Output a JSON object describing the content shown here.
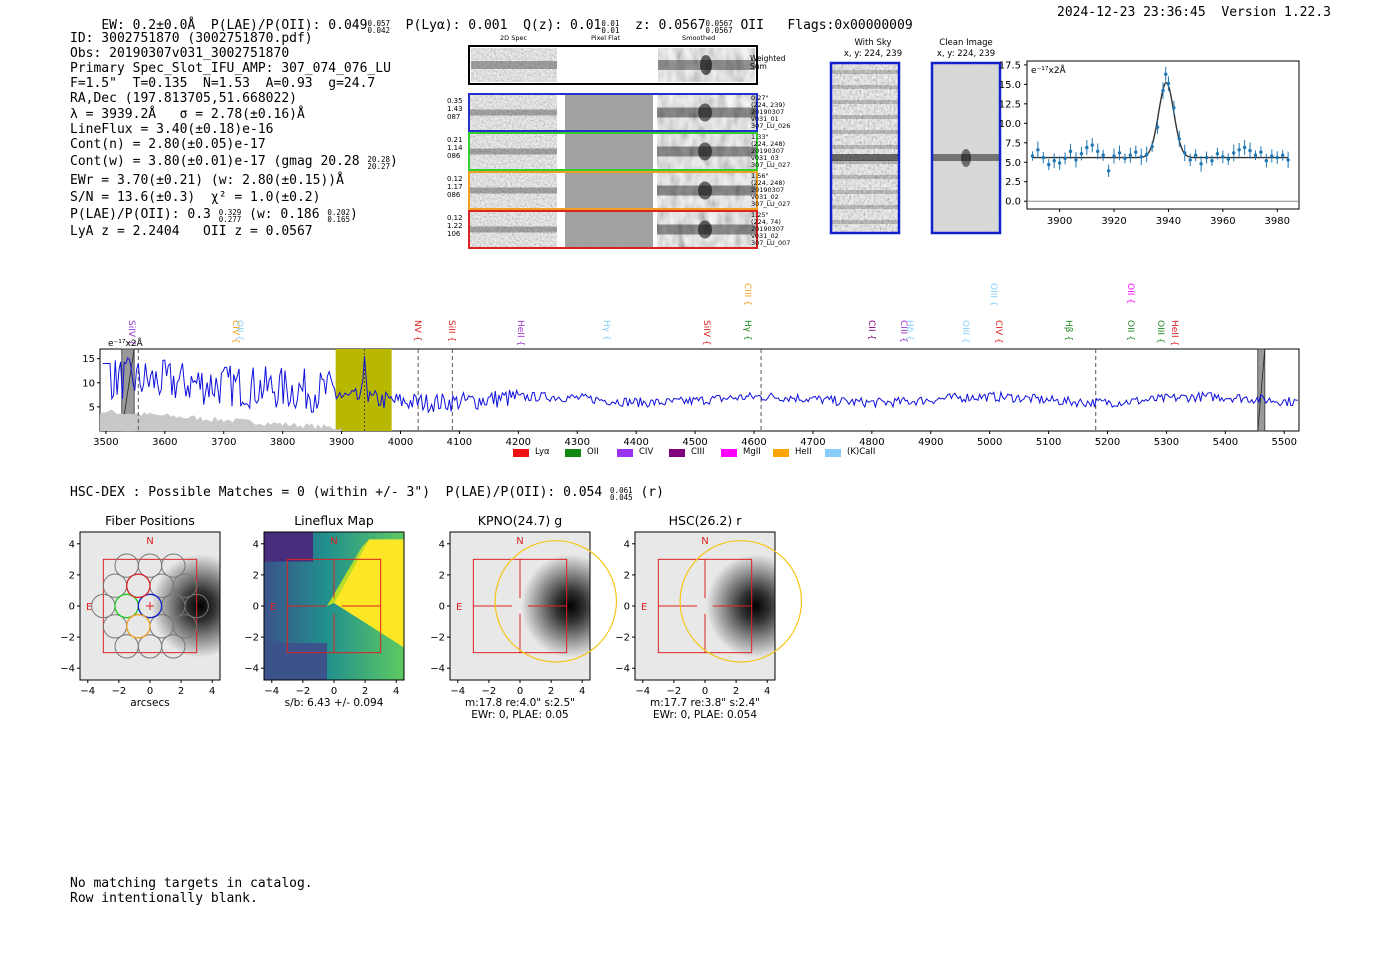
{
  "header": {
    "ew": "EW: 0.2±0.0Å",
    "plae_label": "P(LAE)/P(OII): 0.049",
    "plae_hi": "0.057",
    "plae_lo": "0.042",
    "plya": "P(Lyα): 0.001",
    "qz_label": "Q(z): 0.01",
    "qz_hi": "0.01",
    "qz_lo": "0.01",
    "z_label": "z: 0.0567",
    "z_hi": "0.0567",
    "z_lo": "0.0567",
    "z_line": "OII",
    "flags": "Flags:0x00000009",
    "timestamp": "2024-12-23 23:36:45",
    "version": "Version 1.22.3"
  },
  "info": {
    "id": "ID: 3002751870 (3002751870.pdf)",
    "obs": "Obs: 20190307v031_3002751870",
    "primary": "Primary Spec_Slot_IFU_AMP: 307_074_076_LU",
    "fiber": "F=1.5\"  T=0.135  N=1.53  A=0.93  g=24.7",
    "radec": "RA,Dec (197.813705,51.668022)",
    "lambda": "λ = 3939.2Å   σ = 2.78(±0.16)Å",
    "lineflux": "LineFlux = 3.40(±0.18)e-16",
    "contn": "Cont(n) = 2.80(±0.05)e-17",
    "contw": "Cont(w) = 3.80(±0.01)e-17 (gmag 20.28",
    "gmag_hi": "20.28",
    "gmag_lo": "20.27",
    "contw_end": ")",
    "ewr": "EWr = 3.70(±0.21) (w: 2.80(±0.15))Å",
    "sn": "S/N = 13.6(±0.3)  χ² = 1.0(±0.2)",
    "plae": "P(LAE)/P(OII): 0.3",
    "plae_hi": "0.329",
    "plae_lo": "0.277",
    "plae_w": "(w: 0.186",
    "plae_w_hi": "0.202",
    "plae_w_lo": "0.165",
    "plae_end": ")",
    "lya": "LyA z = 2.2404   OII z = 0.0567"
  },
  "cutouts": {
    "col_2d": "2D Spec",
    "col_flat": "Pixel Flat",
    "col_smooth": "Smoothed",
    "weighted": "Weighted",
    "sum": "Sum",
    "rows": [
      {
        "left": [
          "0.35",
          "1.43",
          "087"
        ],
        "right": [
          "0.27\"",
          "(224, 239)",
          "20190307",
          "v031_01",
          "307_LU_026"
        ],
        "color": "#2233cc"
      },
      {
        "left": [
          "0.21",
          "1.14",
          "086"
        ],
        "right": [
          "1.33\"",
          "(224, 248)",
          "20190307",
          "v031_03",
          "307_LU_027"
        ],
        "color": "#33cc33"
      },
      {
        "left": [
          "0.12",
          "1.17",
          "086"
        ],
        "right": [
          "1.56\"",
          "(224, 248)",
          "20190307",
          "v031_02",
          "307_LU_027"
        ],
        "color": "#f0a020"
      },
      {
        "left": [
          "0.12",
          "1.22",
          "106"
        ],
        "right": [
          "1.25\"",
          "(224, 74)",
          "20190307",
          "v031_02",
          "307_LU_007"
        ],
        "color": "#dd2222"
      }
    ]
  },
  "sky": {
    "with_sky": "With Sky",
    "with_sky_xy": "x, y: 224, 239",
    "clean": "Clean Image",
    "clean_xy": "x, y: 224, 239"
  },
  "zoom_chart": {
    "type": "line",
    "ylabel": "e⁻¹⁷x2Å",
    "xticks": [
      "3900",
      "3920",
      "3940",
      "3960",
      "3980"
    ],
    "yticks": [
      "0.0",
      "2.5",
      "5.0",
      "7.5",
      "10.0",
      "12.5",
      "15.0",
      "17.5"
    ],
    "xlim": [
      3888,
      3988
    ],
    "ylim": [
      -1,
      18
    ],
    "continuum": 5.6,
    "peak_x": 3939.2,
    "peak_y": 15.2,
    "sigma": 2.78,
    "points": [
      [
        3890,
        5.8
      ],
      [
        3892,
        6.6
      ],
      [
        3894,
        5.6
      ],
      [
        3896,
        4.7
      ],
      [
        3898,
        5.2
      ],
      [
        3900,
        4.9
      ],
      [
        3902,
        5.5
      ],
      [
        3904,
        6.4
      ],
      [
        3906,
        5.3
      ],
      [
        3908,
        6.1
      ],
      [
        3910,
        6.9
      ],
      [
        3912,
        7.2
      ],
      [
        3914,
        6.4
      ],
      [
        3916,
        5.9
      ],
      [
        3918,
        3.9
      ],
      [
        3920,
        5.8
      ],
      [
        3922,
        6.2
      ],
      [
        3924,
        5.5
      ],
      [
        3926,
        5.9
      ],
      [
        3928,
        6.3
      ],
      [
        3930,
        5.7
      ],
      [
        3932,
        6.0
      ],
      [
        3934,
        7.0
      ],
      [
        3936,
        9.5
      ],
      [
        3938,
        14.2
      ],
      [
        3939,
        16.3
      ],
      [
        3940,
        15.1
      ],
      [
        3942,
        12.0
      ],
      [
        3944,
        8.0
      ],
      [
        3946,
        6.2
      ],
      [
        3948,
        5.3
      ],
      [
        3950,
        5.9
      ],
      [
        3952,
        4.8
      ],
      [
        3954,
        5.6
      ],
      [
        3956,
        5.2
      ],
      [
        3958,
        6.1
      ],
      [
        3960,
        5.7
      ],
      [
        3962,
        5.4
      ],
      [
        3964,
        6.2
      ],
      [
        3966,
        6.6
      ],
      [
        3968,
        6.9
      ],
      [
        3970,
        6.5
      ],
      [
        3972,
        5.9
      ],
      [
        3974,
        6.3
      ],
      [
        3976,
        5.2
      ],
      [
        3978,
        5.8
      ],
      [
        3980,
        5.6
      ],
      [
        3982,
        5.9
      ],
      [
        3984,
        5.3
      ]
    ]
  },
  "spectrum": {
    "type": "line",
    "ylabel": "e⁻¹⁷x2Å",
    "xticks": [
      "3500",
      "3600",
      "3700",
      "3800",
      "3900",
      "4000",
      "4100",
      "4200",
      "4300",
      "4400",
      "4500",
      "4600",
      "4700",
      "4800",
      "4900",
      "5000",
      "5100",
      "5200",
      "5300",
      "5400",
      "5500"
    ],
    "yticks": [
      "5",
      "10",
      "15"
    ],
    "xlim": [
      3490,
      5525
    ],
    "ylim": [
      0,
      17
    ],
    "highlight": [
      3890,
      3985
    ],
    "peak_x": 3939,
    "dashed": [
      3555,
      4030,
      4088,
      4612,
      5180
    ],
    "masked": [
      [
        3527,
        3548
      ],
      [
        5455,
        5467
      ]
    ],
    "line_labels": [
      {
        "label": "SiIV",
        "x": 3545,
        "color": "#9933cc",
        "row": 0
      },
      {
        "label": "CIV",
        "x": 3720,
        "color": "#f0a020",
        "row": 0
      },
      {
        "label": "OII",
        "x": 3728,
        "color": "#87cefa",
        "row": 0
      },
      {
        "label": "NV",
        "x": 4030,
        "color": "#dd2222",
        "row": 0
      },
      {
        "label": "SiII",
        "x": 4088,
        "color": "#dd2222",
        "row": 0
      },
      {
        "label": "HeII",
        "x": 4205,
        "color": "#9933cc",
        "row": 0
      },
      {
        "label": "Hγ",
        "x": 4350,
        "color": "#87cefa",
        "row": 0
      },
      {
        "label": "SiIV",
        "x": 4520,
        "color": "#dd2222",
        "row": 0
      },
      {
        "label": "CIII",
        "x": 4590,
        "color": "#f0a020",
        "row": 1
      },
      {
        "label": "Hγ",
        "x": 4590,
        "color": "#228b22",
        "row": 0
      },
      {
        "label": "CII",
        "x": 4800,
        "color": "#800080",
        "row": 0
      },
      {
        "label": "CIII",
        "x": 4855,
        "color": "#9933cc",
        "row": 0
      },
      {
        "label": "Hδ",
        "x": 4865,
        "color": "#87cefa",
        "row": 0
      },
      {
        "label": "OIII",
        "x": 4960,
        "color": "#87cefa",
        "row": 0
      },
      {
        "label": "OIII",
        "x": 5007,
        "color": "#87cefa",
        "row": 1
      },
      {
        "label": "CIV",
        "x": 5015,
        "color": "#dd2222",
        "row": 0
      },
      {
        "label": "Hβ",
        "x": 5135,
        "color": "#228b22",
        "row": 0
      },
      {
        "label": "OII",
        "x": 5240,
        "color": "#228b22",
        "row": 0
      },
      {
        "label": "OII",
        "x": 5240,
        "color": "#ff00ff",
        "row": 1
      },
      {
        "label": "OIII",
        "x": 5290,
        "color": "#228b22",
        "row": 0
      },
      {
        "label": "HeII",
        "x": 5315,
        "color": "#dd2222",
        "row": 0
      }
    ],
    "legend": [
      {
        "label": "Lyα",
        "color": "#ee1111"
      },
      {
        "label": "OII",
        "color": "#118811"
      },
      {
        "label": "CIV",
        "color": "#9933ee"
      },
      {
        "label": "CIII",
        "color": "#800080"
      },
      {
        "label": "MgII",
        "color": "#ff00ff"
      },
      {
        "label": "HeII",
        "color": "#ffa500"
      },
      {
        "label": "(K)CaII",
        "color": "#87cefa"
      }
    ]
  },
  "hsc": {
    "summary": "HSC-DEX : Possible Matches = 0 (within +/- 3\")  P(LAE)/P(OII): 0.054",
    "sum_hi": "0.061",
    "sum_lo": "0.045",
    "sum_band": "(r)",
    "panels": [
      {
        "title": "Fiber Positions",
        "xlabel": "arcsecs",
        "foot1": "",
        "foot2": ""
      },
      {
        "title": "Lineflux Map",
        "xlabel": "s/b: 6.43 +/- 0.094",
        "foot1": "",
        "foot2": ""
      },
      {
        "title": "KPNO(24.7) g",
        "xlabel": "m:17.8  re:4.0\"  s:2.5\"",
        "foot1": "EWr: 0, PLAE: 0.05",
        "foot2": ""
      },
      {
        "title": "HSC(26.2) r",
        "xlabel": "m:17.7  re:3.8\"  s:2.4\"",
        "foot1": "EWr: 0, PLAE: 0.054",
        "foot2": ""
      }
    ],
    "axis_ticks": [
      "−4",
      "−2",
      "0",
      "2",
      "4"
    ],
    "north": "N",
    "east": "E"
  },
  "footer": {
    "line1": "No matching targets in catalog.",
    "line2": "Row intentionally blank."
  }
}
